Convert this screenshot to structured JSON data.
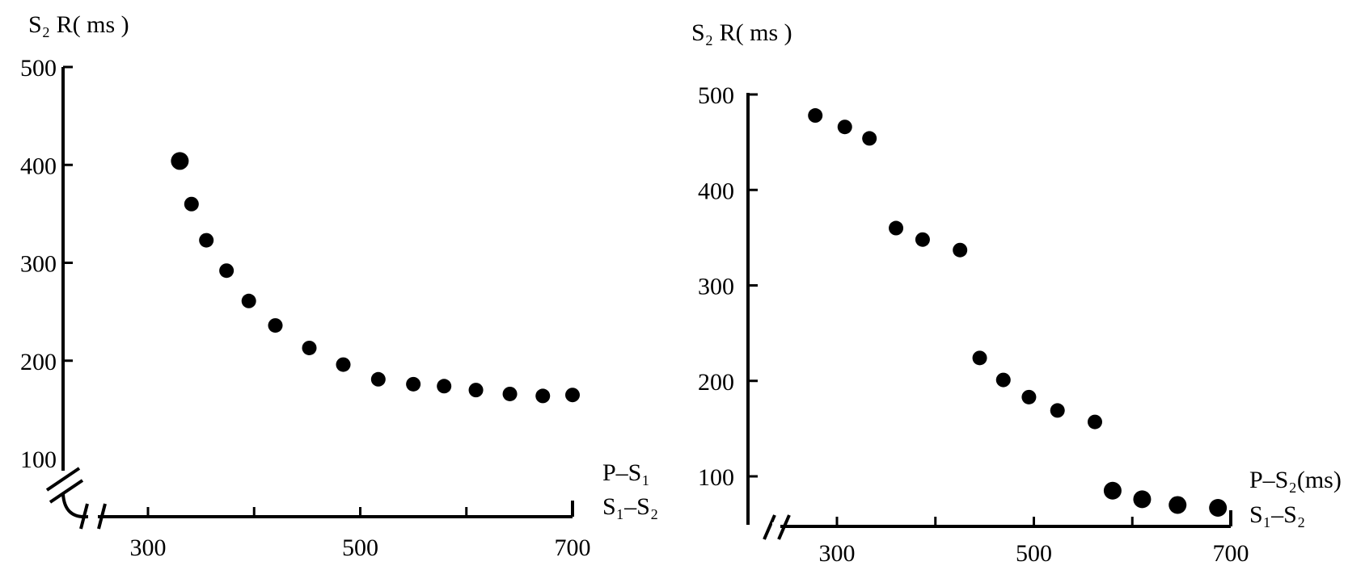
{
  "chart_data": [
    {
      "type": "scatter",
      "ylabel": "S₂ R( ms )",
      "xlabel_line1": "P–S₁",
      "xlabel_line2": "S₁–S₂",
      "x_ticks": [
        "300",
        "500",
        "700"
      ],
      "y_ticks": [
        "500",
        "400",
        "300",
        "200",
        "100"
      ],
      "xlim": [
        220,
        700
      ],
      "ylim": [
        100,
        500
      ],
      "axis_break": true,
      "points": [
        {
          "x": 330,
          "y": 404
        },
        {
          "x": 341,
          "y": 360
        },
        {
          "x": 355,
          "y": 323
        },
        {
          "x": 374,
          "y": 292
        },
        {
          "x": 395,
          "y": 261
        },
        {
          "x": 420,
          "y": 236
        },
        {
          "x": 452,
          "y": 213
        },
        {
          "x": 484,
          "y": 196
        },
        {
          "x": 517,
          "y": 181
        },
        {
          "x": 550,
          "y": 176
        },
        {
          "x": 579,
          "y": 174
        },
        {
          "x": 609,
          "y": 170
        },
        {
          "x": 641,
          "y": 166
        },
        {
          "x": 672,
          "y": 164
        },
        {
          "x": 700,
          "y": 165
        }
      ]
    },
    {
      "type": "scatter",
      "ylabel": "S₂ R( ms )",
      "xlabel_line1": "P–S₂(ms)",
      "xlabel_line2": "S₁–S₂",
      "x_ticks": [
        "300",
        "500",
        "700"
      ],
      "y_ticks": [
        "500",
        "400",
        "300",
        "200",
        "100"
      ],
      "xlim": [
        220,
        700
      ],
      "ylim": [
        100,
        500
      ],
      "axis_break": true,
      "points": [
        {
          "x": 278,
          "y": 478
        },
        {
          "x": 308,
          "y": 466
        },
        {
          "x": 333,
          "y": 454
        },
        {
          "x": 360,
          "y": 360
        },
        {
          "x": 387,
          "y": 348
        },
        {
          "x": 425,
          "y": 337
        },
        {
          "x": 445,
          "y": 224
        },
        {
          "x": 469,
          "y": 201
        },
        {
          "x": 495,
          "y": 183
        },
        {
          "x": 524,
          "y": 169
        },
        {
          "x": 562,
          "y": 157
        },
        {
          "x": 580,
          "y": 85
        },
        {
          "x": 610,
          "y": 76
        },
        {
          "x": 646,
          "y": 70
        },
        {
          "x": 687,
          "y": 67
        }
      ]
    }
  ]
}
